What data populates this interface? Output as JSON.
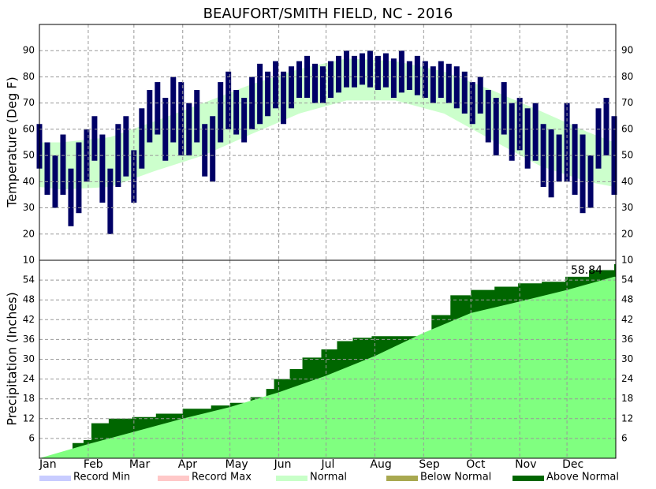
{
  "chart_data": [
    {
      "type": "range",
      "title": "BEAUFORT/SMITH FIELD, NC - 2016",
      "ylabel": "Temperature (Deg F)",
      "xlim": [
        1,
        367
      ],
      "xticks": [
        1,
        32,
        61,
        92,
        122,
        153,
        183,
        214,
        245,
        275,
        306,
        336
      ],
      "ylim": [
        10,
        100
      ],
      "yticks": [
        10,
        20,
        30,
        40,
        50,
        60,
        70,
        80,
        90
      ],
      "grid": true,
      "series": [
        {
          "style": "band",
          "color": "#ccffcc",
          "x": [
            1,
            15,
            46,
            74,
            105,
            135,
            166,
            196,
            227,
            258,
            288,
            319,
            349,
            366
          ],
          "low": [
            38,
            37,
            38,
            44,
            50,
            58,
            66,
            71,
            71,
            66,
            56,
            46,
            40,
            38
          ],
          "high": [
            55,
            55,
            57,
            63,
            70,
            77,
            83,
            87,
            86,
            82,
            75,
            67,
            59,
            55
          ]
        },
        {
          "style": "bars",
          "color": "#000066",
          "x": [
            1,
            6,
            11,
            16,
            21,
            26,
            31,
            36,
            41,
            46,
            51,
            56,
            61,
            66,
            71,
            76,
            81,
            86,
            91,
            96,
            101,
            106,
            111,
            116,
            121,
            126,
            131,
            136,
            141,
            146,
            151,
            156,
            161,
            166,
            171,
            176,
            181,
            186,
            191,
            196,
            201,
            206,
            211,
            216,
            221,
            226,
            231,
            236,
            241,
            246,
            251,
            256,
            261,
            266,
            271,
            276,
            281,
            286,
            291,
            296,
            301,
            306,
            311,
            316,
            321,
            326,
            331,
            336,
            341,
            346,
            351,
            356,
            361,
            366
          ],
          "low": [
            45,
            35,
            30,
            35,
            23,
            28,
            40,
            48,
            32,
            20,
            38,
            42,
            32,
            45,
            55,
            58,
            48,
            55,
            50,
            50,
            55,
            42,
            40,
            55,
            60,
            58,
            55,
            60,
            62,
            65,
            68,
            62,
            68,
            72,
            72,
            70,
            70,
            72,
            74,
            76,
            76,
            77,
            76,
            75,
            76,
            72,
            74,
            75,
            73,
            72,
            70,
            72,
            70,
            68,
            66,
            62,
            66,
            55,
            50,
            58,
            48,
            52,
            45,
            48,
            38,
            34,
            40,
            40,
            35,
            28,
            30,
            45,
            50,
            35
          ],
          "high": [
            62,
            55,
            50,
            58,
            45,
            55,
            60,
            65,
            58,
            45,
            62,
            65,
            52,
            68,
            75,
            78,
            72,
            80,
            78,
            70,
            75,
            62,
            65,
            78,
            82,
            75,
            72,
            80,
            85,
            82,
            86,
            82,
            84,
            86,
            88,
            85,
            84,
            86,
            88,
            90,
            88,
            89,
            90,
            88,
            89,
            87,
            90,
            86,
            88,
            86,
            84,
            86,
            85,
            84,
            82,
            78,
            80,
            75,
            72,
            78,
            70,
            72,
            68,
            70,
            62,
            60,
            58,
            70,
            62,
            58,
            50,
            68,
            72,
            65
          ]
        }
      ]
    },
    {
      "type": "area",
      "ylabel": "Precipitation (Inches)",
      "annotation": "58.84",
      "xlim": [
        1,
        367
      ],
      "xticks": [
        {
          "value": 1,
          "label": "Jan"
        },
        {
          "value": 32,
          "label": "Feb"
        },
        {
          "value": 61,
          "label": "Mar"
        },
        {
          "value": 92,
          "label": "Apr"
        },
        {
          "value": 122,
          "label": "May"
        },
        {
          "value": 153,
          "label": "Jun"
        },
        {
          "value": 183,
          "label": "Jul"
        },
        {
          "value": 214,
          "label": "Aug"
        },
        {
          "value": 245,
          "label": "Sep"
        },
        {
          "value": 275,
          "label": "Oct"
        },
        {
          "value": 306,
          "label": "Nov"
        },
        {
          "value": 336,
          "label": "Dec"
        }
      ],
      "ylim": [
        0,
        60
      ],
      "yticks": [
        6,
        12,
        18,
        24,
        30,
        36,
        42,
        48,
        54
      ],
      "grid": true,
      "series": [
        {
          "step": true,
          "color": "#006600",
          "x": [
            1,
            8,
            15,
            22,
            29,
            34,
            45,
            60,
            75,
            92,
            110,
            122,
            135,
            145,
            150,
            160,
            168,
            180,
            190,
            200,
            212,
            244,
            250,
            262,
            275,
            290,
            305,
            320,
            335,
            350,
            366
          ],
          "values": [
            0,
            0.6,
            1.8,
            4.6,
            5.5,
            10.6,
            12,
            12.5,
            13.5,
            15,
            16,
            16.8,
            18.5,
            21,
            24,
            27,
            30.5,
            33,
            35.5,
            36.5,
            37,
            37,
            43.4,
            49.4,
            51,
            52,
            53,
            53.5,
            55,
            57,
            58.84
          ]
        },
        {
          "step": false,
          "color": "#80ff80",
          "x": [
            1,
            32,
            61,
            92,
            122,
            153,
            183,
            214,
            245,
            275,
            306,
            336,
            366
          ],
          "values": [
            0,
            4.3,
            8,
            12,
            15.5,
            20,
            25,
            31,
            38,
            44,
            47.5,
            51,
            55
          ]
        }
      ]
    }
  ],
  "legend": [
    {
      "name": "Record Min",
      "color": "#c8ccff"
    },
    {
      "name": "Record Max",
      "color": "#ffc8c8"
    },
    {
      "name": "Normal",
      "color": "#c8ffc8"
    },
    {
      "name": "Below Normal",
      "color": "#a8a850"
    },
    {
      "name": "Above Normal",
      "color": "#006600"
    }
  ]
}
